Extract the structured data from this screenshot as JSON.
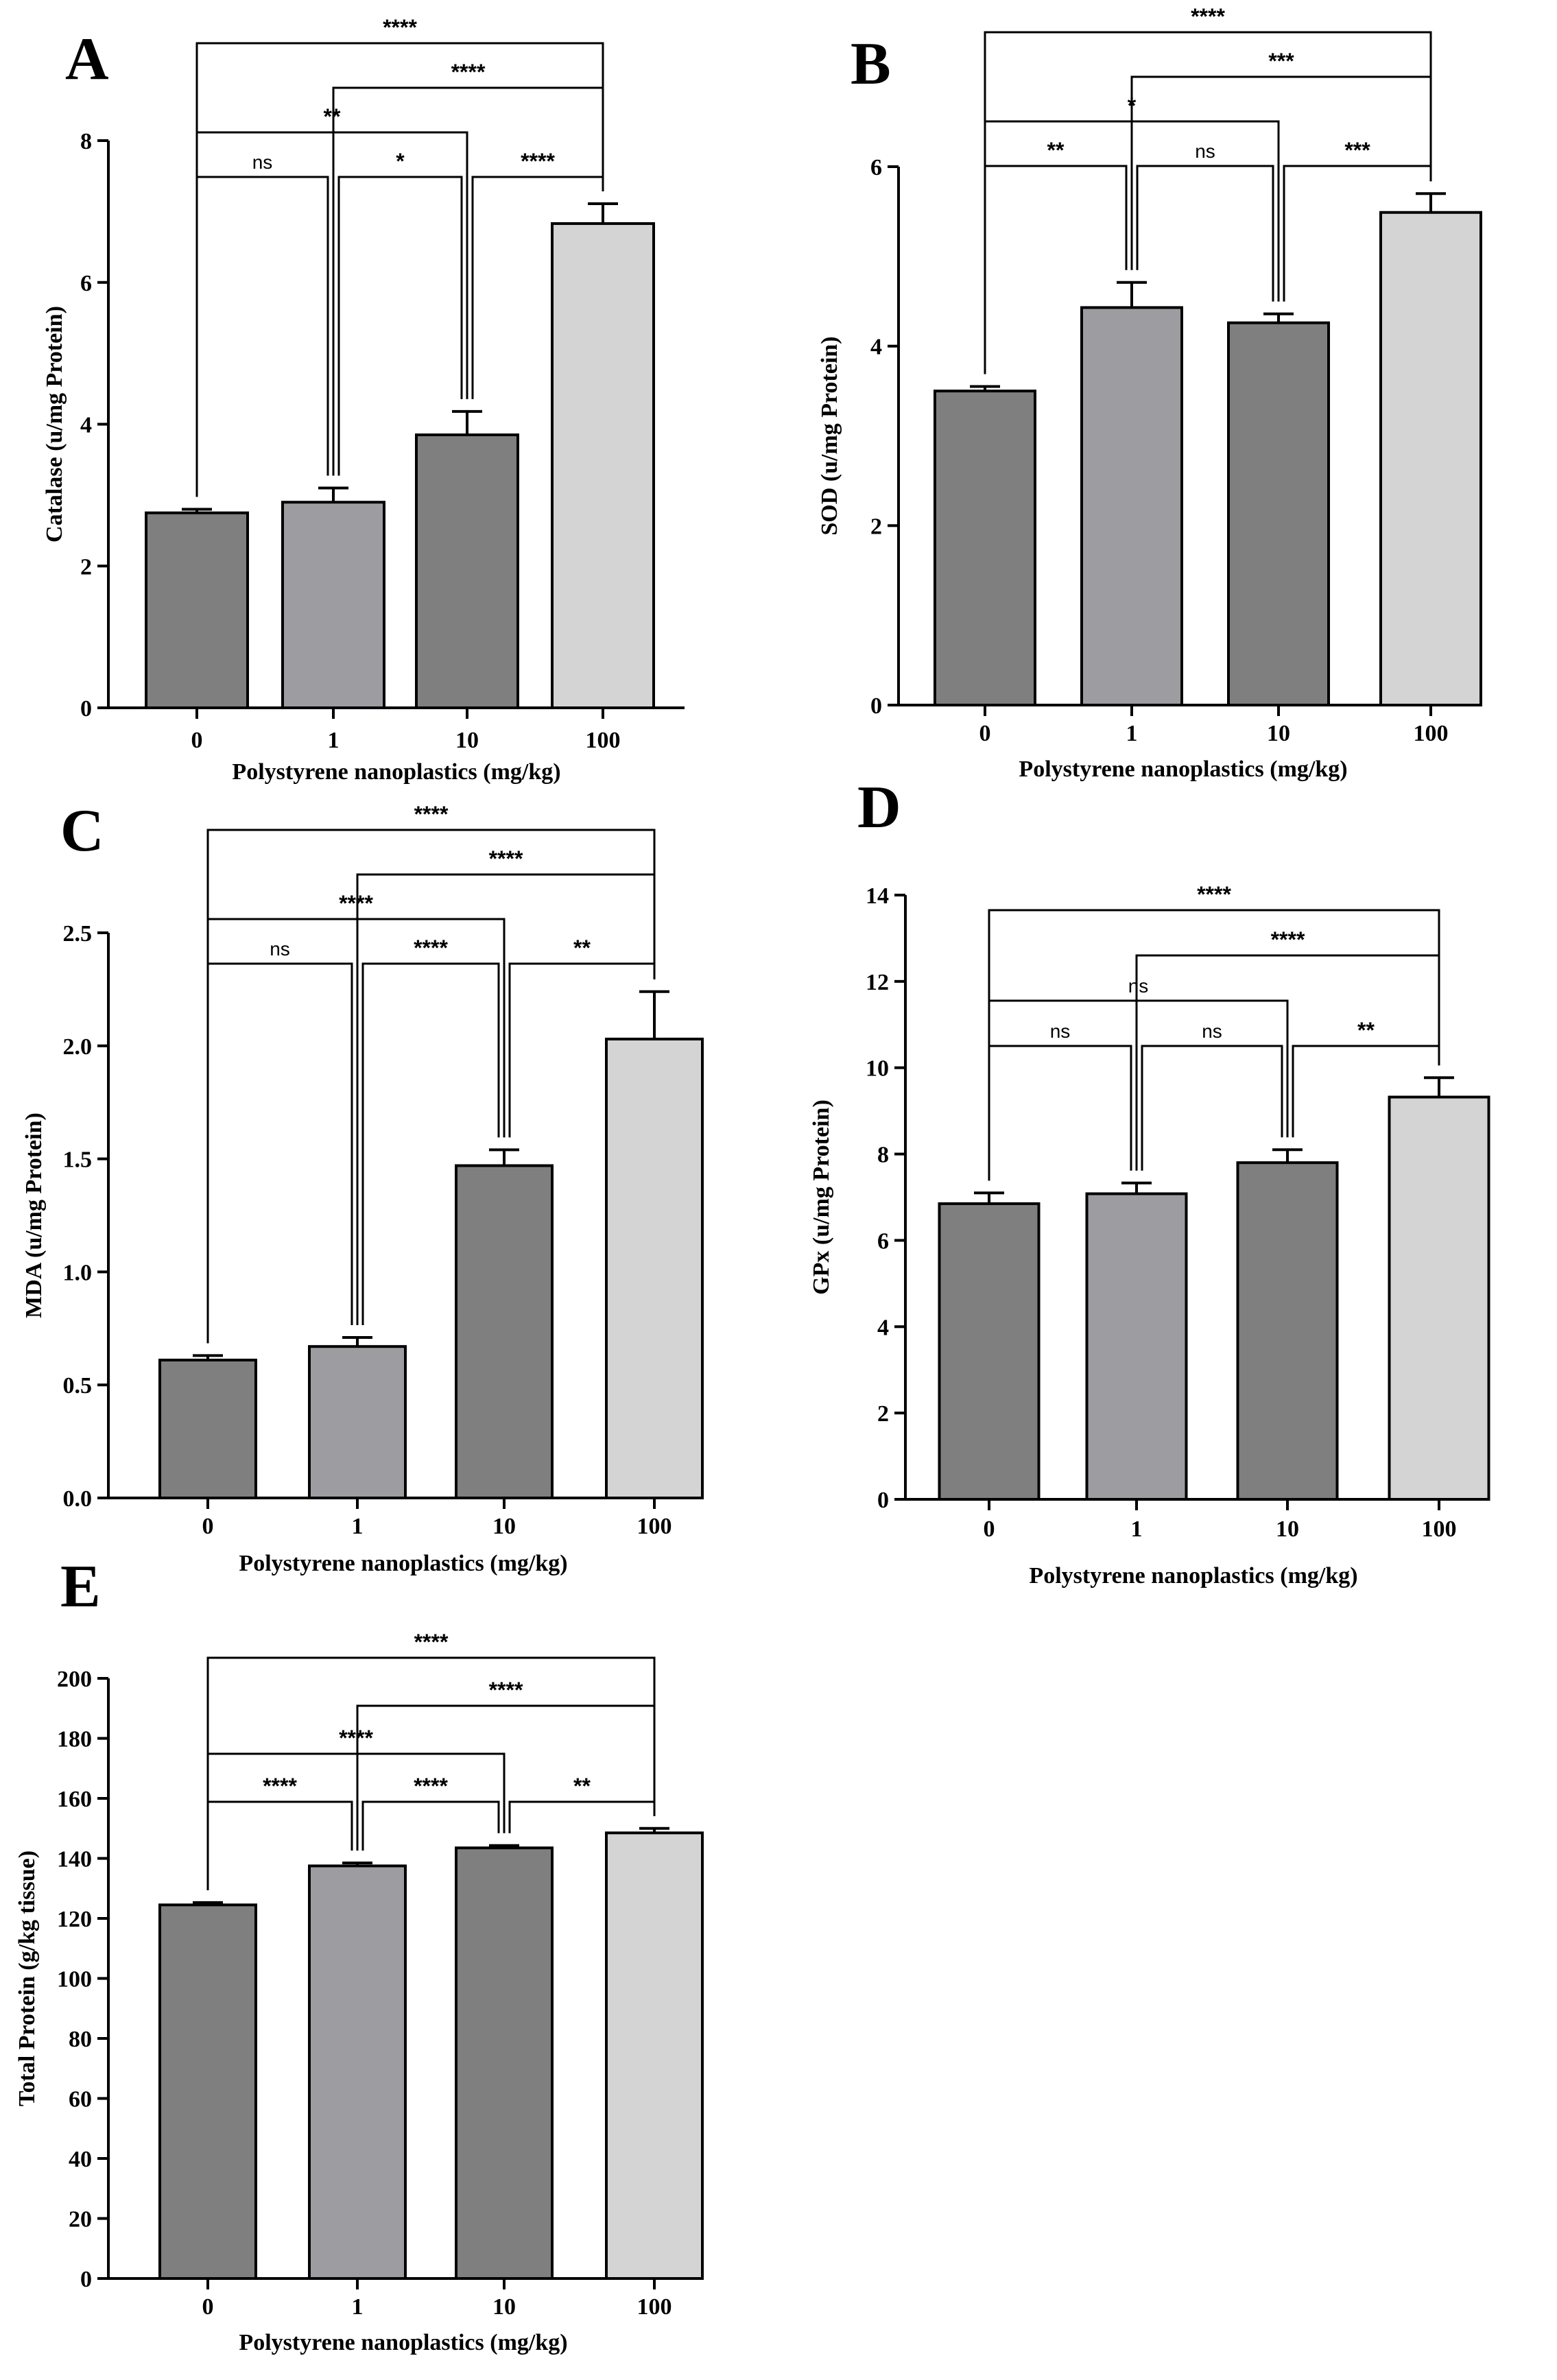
{
  "chart_data": [
    {
      "type": "bar",
      "panel_label": "A",
      "categories": [
        "0",
        "1",
        "10",
        "100"
      ],
      "values": [
        2.75,
        2.9,
        3.85,
        6.83
      ],
      "errors": [
        0.05,
        0.2,
        0.33,
        0.28
      ],
      "bar_colors": [
        "#7f7f7f",
        "#9d9da1",
        "#7f7f7f",
        "#d4d4d4"
      ],
      "xlabel": "Polystyrene nanoplastics (mg/kg)",
      "ylabel": "Catalase (u/mg Protein)",
      "ylim": [
        0,
        8
      ],
      "yticks": [
        "0",
        "2",
        "4",
        "6",
        "8"
      ],
      "comparisons": [
        {
          "from": 0,
          "to": 1,
          "label": "ns"
        },
        {
          "from": 1,
          "to": 2,
          "label": "*"
        },
        {
          "from": 2,
          "to": 3,
          "label": "****"
        },
        {
          "from": 0,
          "to": 2,
          "label": "**"
        },
        {
          "from": 1,
          "to": 3,
          "label": "****"
        },
        {
          "from": 0,
          "to": 3,
          "label": "****"
        }
      ]
    },
    {
      "type": "bar",
      "panel_label": "B",
      "categories": [
        "0",
        "1",
        "10",
        "100"
      ],
      "values": [
        3.5,
        4.43,
        4.26,
        5.49
      ],
      "errors": [
        0.05,
        0.28,
        0.1,
        0.21
      ],
      "bar_colors": [
        "#7f7f7f",
        "#9d9da1",
        "#7f7f7f",
        "#d4d4d4"
      ],
      "xlabel": "Polystyrene nanoplastics (mg/kg)",
      "ylabel": "SOD (u/mg Protein)",
      "ylim": [
        0,
        6
      ],
      "yticks": [
        "0",
        "2",
        "4",
        "6"
      ],
      "comparisons": [
        {
          "from": 0,
          "to": 1,
          "label": "**"
        },
        {
          "from": 1,
          "to": 2,
          "label": "ns"
        },
        {
          "from": 2,
          "to": 3,
          "label": "***"
        },
        {
          "from": 0,
          "to": 2,
          "label": "*"
        },
        {
          "from": 1,
          "to": 3,
          "label": "***"
        },
        {
          "from": 0,
          "to": 3,
          "label": "****"
        }
      ]
    },
    {
      "type": "bar",
      "panel_label": "C",
      "categories": [
        "0",
        "1",
        "10",
        "100"
      ],
      "values": [
        0.61,
        0.67,
        1.47,
        2.03
      ],
      "errors": [
        0.02,
        0.04,
        0.07,
        0.21
      ],
      "bar_colors": [
        "#7f7f7f",
        "#9d9da1",
        "#7f7f7f",
        "#d4d4d4"
      ],
      "xlabel": "Polystyrene nanoplastics (mg/kg)",
      "ylabel": "MDA (u/mg Protein)",
      "ylim": [
        0,
        2.5
      ],
      "yticks": [
        "0.0",
        "0.5",
        "1.0",
        "1.5",
        "2.0",
        "2.5"
      ],
      "comparisons": [
        {
          "from": 0,
          "to": 1,
          "label": "ns"
        },
        {
          "from": 1,
          "to": 2,
          "label": "****"
        },
        {
          "from": 2,
          "to": 3,
          "label": "**"
        },
        {
          "from": 0,
          "to": 2,
          "label": "****"
        },
        {
          "from": 1,
          "to": 3,
          "label": "****"
        },
        {
          "from": 0,
          "to": 3,
          "label": "****"
        }
      ]
    },
    {
      "type": "bar",
      "panel_label": "D",
      "categories": [
        "0",
        "1",
        "10",
        "100"
      ],
      "values": [
        6.85,
        7.08,
        7.8,
        9.32
      ],
      "errors": [
        0.25,
        0.25,
        0.3,
        0.45
      ],
      "bar_colors": [
        "#7f7f7f",
        "#9d9da1",
        "#7f7f7f",
        "#d4d4d4"
      ],
      "xlabel": "Polystyrene nanoplastics (mg/kg)",
      "ylabel": "GPx (u/mg Protein)",
      "ylim": [
        0,
        14
      ],
      "yticks": [
        "0",
        "2",
        "4",
        "6",
        "8",
        "10",
        "12",
        "14"
      ],
      "comparisons": [
        {
          "from": 0,
          "to": 1,
          "label": "ns"
        },
        {
          "from": 1,
          "to": 2,
          "label": "ns"
        },
        {
          "from": 2,
          "to": 3,
          "label": "**"
        },
        {
          "from": 0,
          "to": 2,
          "label": "ns"
        },
        {
          "from": 1,
          "to": 3,
          "label": "****"
        },
        {
          "from": 0,
          "to": 3,
          "label": "****"
        }
      ]
    },
    {
      "type": "bar",
      "panel_label": "E",
      "categories": [
        "0",
        "1",
        "10",
        "100"
      ],
      "values": [
        124.5,
        137.5,
        143.5,
        148.5
      ],
      "errors": [
        0.8,
        1.0,
        0.8,
        1.5
      ],
      "bar_colors": [
        "#7f7f7f",
        "#9d9da1",
        "#7f7f7f",
        "#d4d4d4"
      ],
      "xlabel": "Polystyrene nanoplastics (mg/kg)",
      "ylabel": "Total Protein (g/kg tissue)",
      "ylim": [
        0,
        200
      ],
      "yticks": [
        "0",
        "20",
        "40",
        "60",
        "80",
        "100",
        "120",
        "140",
        "160",
        "180",
        "200"
      ],
      "comparisons": [
        {
          "from": 0,
          "to": 1,
          "label": "****"
        },
        {
          "from": 1,
          "to": 2,
          "label": "****"
        },
        {
          "from": 2,
          "to": 3,
          "label": "**"
        },
        {
          "from": 0,
          "to": 2,
          "label": "****"
        },
        {
          "from": 1,
          "to": 3,
          "label": "****"
        },
        {
          "from": 0,
          "to": 3,
          "label": "****"
        }
      ]
    }
  ]
}
